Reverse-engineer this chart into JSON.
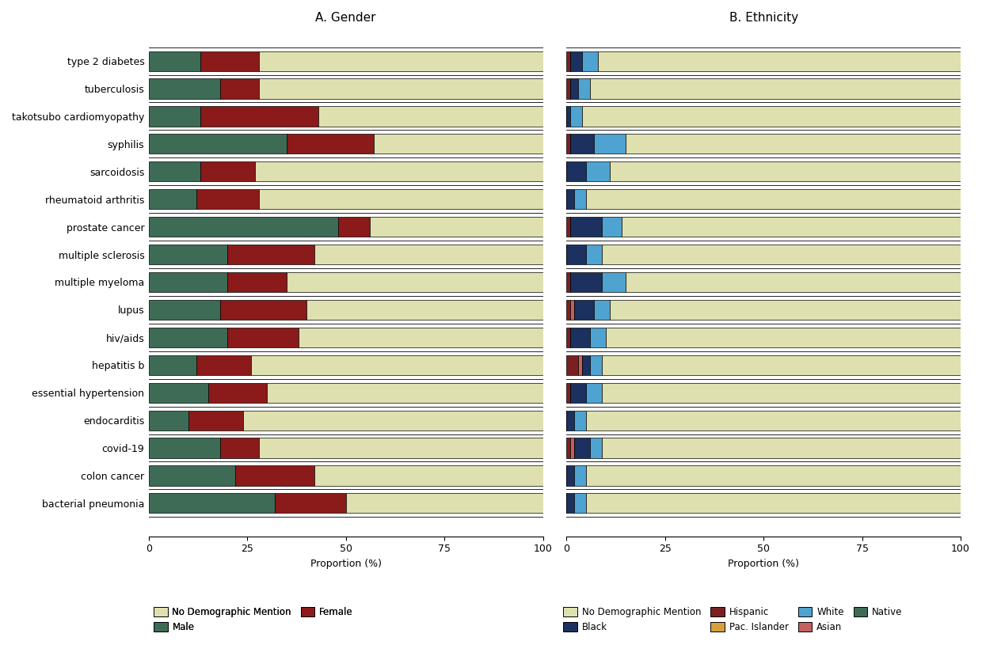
{
  "diseases": [
    "type 2 diabetes",
    "tuberculosis",
    "takotsubo cardiomyopathy",
    "syphilis",
    "sarcoidosis",
    "rheumatoid arthritis",
    "prostate cancer",
    "multiple sclerosis",
    "multiple myeloma",
    "lupus",
    "hiv/aids",
    "hepatitis b",
    "essential hypertension",
    "endocarditis",
    "covid-19",
    "colon cancer",
    "bacterial pneumonia"
  ],
  "gender": {
    "Male": [
      13,
      18,
      13,
      35,
      13,
      12,
      48,
      20,
      20,
      18,
      20,
      12,
      15,
      10,
      18,
      22,
      32
    ],
    "Female": [
      15,
      10,
      30,
      22,
      14,
      16,
      8,
      22,
      15,
      22,
      18,
      14,
      15,
      14,
      10,
      20,
      18
    ],
    "No Demographic Mention": [
      72,
      72,
      57,
      43,
      73,
      72,
      44,
      58,
      65,
      60,
      62,
      74,
      70,
      76,
      72,
      58,
      50
    ]
  },
  "ethnicity": {
    "Hispanic": [
      1,
      1,
      0,
      1,
      0,
      0,
      1,
      0,
      1,
      1,
      1,
      3,
      1,
      0,
      1,
      0,
      0
    ],
    "Asian": [
      0,
      0,
      0,
      0,
      0,
      0,
      0,
      0,
      0,
      1,
      0,
      1,
      0,
      0,
      1,
      0,
      0
    ],
    "Native": [
      0,
      0,
      0,
      0,
      0,
      0,
      0,
      0,
      0,
      0,
      0,
      0,
      0,
      0,
      0,
      0,
      0
    ],
    "Pac. Islander": [
      0,
      0,
      0,
      0,
      0,
      0,
      0,
      0,
      0,
      0,
      0,
      0,
      0,
      0,
      0,
      0,
      0
    ],
    "Black": [
      3,
      2,
      1,
      6,
      5,
      2,
      8,
      5,
      8,
      5,
      5,
      2,
      4,
      2,
      4,
      2,
      2
    ],
    "White": [
      4,
      3,
      3,
      8,
      6,
      3,
      5,
      4,
      6,
      4,
      4,
      3,
      4,
      3,
      3,
      3,
      3
    ],
    "No Demographic Mention": [
      92,
      94,
      96,
      85,
      89,
      95,
      86,
      91,
      85,
      89,
      90,
      91,
      91,
      95,
      91,
      95,
      95
    ]
  },
  "gender_colors": {
    "Male": "#3d6b56",
    "Female": "#8b1a1a",
    "No Demographic Mention": "#dfe0b0"
  },
  "ethnicity_colors": {
    "Black": "#1c3160",
    "White": "#4fa3d1",
    "Hispanic": "#7b2020",
    "Asian": "#c46060",
    "Native": "#3d6b56",
    "Pac. Islander": "#d4a040",
    "No Demographic Mention": "#dfe0b0"
  },
  "title_A": "A. Gender",
  "title_B": "B. Ethnicity",
  "xlabel": "Proportion (%)",
  "xlim": [
    0,
    100
  ],
  "xticks": [
    0,
    25,
    50,
    75,
    100
  ]
}
